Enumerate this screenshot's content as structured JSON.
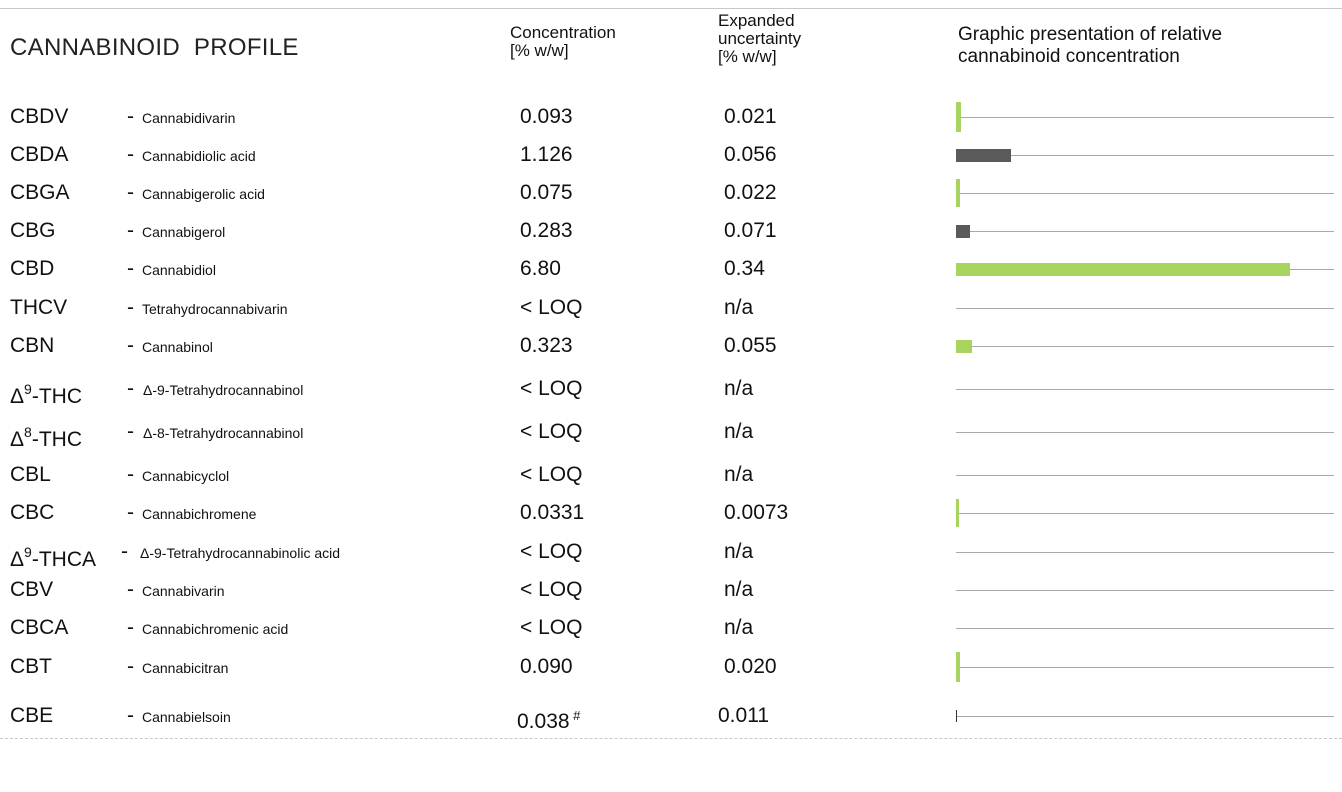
{
  "header": {
    "title": "CANNABINOID  PROFILE",
    "concentration": [
      "Concentration",
      "[% w/w]"
    ],
    "uncertainty": [
      "Expanded",
      "uncertainty",
      "[% w/w]"
    ],
    "graph": [
      "Graphic presentation of relative",
      "cannabinoid concentration"
    ]
  },
  "colors": {
    "acid": "#5a5a5a",
    "neutral": "#a6d45f",
    "axis": "#a9a9a9"
  },
  "graph_scale_max": 7.7,
  "rows": [
    {
      "code": "CBDV",
      "delta": false,
      "sup": "",
      "suffix": "",
      "dash": "-",
      "name": "Cannabidivarin",
      "conc": "0.093",
      "note": "",
      "unc": "0.021",
      "value": 0.093,
      "bar": "neutral"
    },
    {
      "code": "CBDA",
      "delta": false,
      "sup": "",
      "suffix": "",
      "dash": "-",
      "name": "Cannabidiolic acid",
      "conc": "1.126",
      "note": "",
      "unc": "0.056",
      "value": 1.126,
      "bar": "acid"
    },
    {
      "code": "CBGA",
      "delta": false,
      "sup": "",
      "suffix": "",
      "dash": "-",
      "name": "Cannabigerolic acid",
      "conc": "0.075",
      "note": "",
      "unc": "0.022",
      "value": 0.075,
      "bar": "neutral"
    },
    {
      "code": "CBG",
      "delta": false,
      "sup": "",
      "suffix": "",
      "dash": "-",
      "name": "Cannabigerol",
      "conc": "0.283",
      "note": "",
      "unc": "0.071",
      "value": 0.283,
      "bar": "acid"
    },
    {
      "code": "CBD",
      "delta": false,
      "sup": "",
      "suffix": "",
      "dash": "-",
      "name": "Cannabidiol",
      "conc": "6.80",
      "note": "",
      "unc": "0.34",
      "value": 6.8,
      "bar": "neutral"
    },
    {
      "code": "THCV",
      "delta": false,
      "sup": "",
      "suffix": "",
      "dash": "-",
      "name": "Tetrahydrocannabivarin",
      "conc": "< LOQ",
      "note": "",
      "unc": "n/a",
      "value": 0,
      "bar": "none"
    },
    {
      "code": "CBN",
      "delta": false,
      "sup": "",
      "suffix": "",
      "dash": "-",
      "name": "Cannabinol",
      "conc": "0.323",
      "note": "",
      "unc": "0.055",
      "value": 0.323,
      "bar": "neutral"
    },
    {
      "code": "Δ",
      "delta": true,
      "sup": "9",
      "suffix": "-THC",
      "dash": "-",
      "name": "Δ-9-Tetrahydrocannabinol",
      "conc": "< LOQ",
      "note": "",
      "unc": "n/a",
      "value": 0,
      "bar": "none"
    },
    {
      "code": "Δ",
      "delta": true,
      "sup": "8",
      "suffix": "-THC",
      "dash": "-",
      "name": "Δ-8-Tetrahydrocannabinol",
      "conc": "< LOQ",
      "note": "",
      "unc": "n/a",
      "value": 0,
      "bar": "none"
    },
    {
      "code": "CBL",
      "delta": false,
      "sup": "",
      "suffix": "",
      "dash": "-",
      "name": "Cannabicyclol",
      "conc": "< LOQ",
      "note": "",
      "unc": "n/a",
      "value": 0,
      "bar": "none"
    },
    {
      "code": "CBC",
      "delta": false,
      "sup": "",
      "suffix": "",
      "dash": "-",
      "name": "Cannabichromene",
      "conc": "0.0331",
      "note": "",
      "unc": "0.0073",
      "value": 0.0331,
      "bar": "neutral"
    },
    {
      "code": "Δ",
      "delta": true,
      "sup": "9",
      "suffix": "-THCA",
      "dash": "-",
      "name": "Δ-9-Tetrahydrocannabinolic  acid",
      "conc": "< LOQ",
      "note": "",
      "unc": "n/a",
      "value": 0,
      "bar": "none"
    },
    {
      "code": "CBV",
      "delta": false,
      "sup": "",
      "suffix": "",
      "dash": "-",
      "name": "Cannabivarin",
      "conc": "< LOQ",
      "note": "",
      "unc": "n/a",
      "value": 0,
      "bar": "none"
    },
    {
      "code": "CBCA",
      "delta": false,
      "sup": "",
      "suffix": "",
      "dash": "-",
      "name": "Cannabichromenic acid",
      "conc": "< LOQ",
      "note": "",
      "unc": "n/a",
      "value": 0,
      "bar": "none"
    },
    {
      "code": "CBT",
      "delta": false,
      "sup": "",
      "suffix": "",
      "dash": "-",
      "name": "Cannabicitran",
      "conc": "0.090",
      "note": "",
      "unc": "0.020",
      "value": 0.09,
      "bar": "neutral"
    },
    {
      "code": "CBE",
      "delta": false,
      "sup": "",
      "suffix": "",
      "dash": "-",
      "name": "Cannabielsoin",
      "conc": "0.038",
      "note": "#",
      "unc": "0.011",
      "value": 0.038,
      "bar": "outline"
    }
  ]
}
